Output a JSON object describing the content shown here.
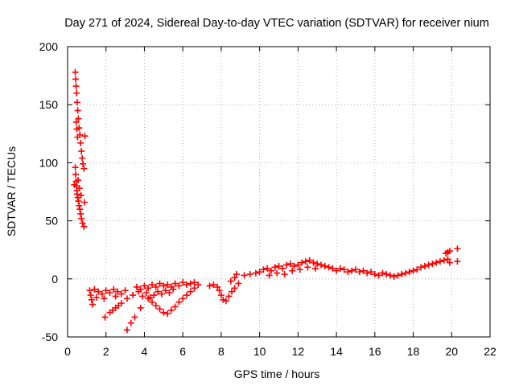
{
  "chart_data": {
    "type": "scatter",
    "title": "Day 271 of 2024, Sidereal Day-to-day VTEC variation (SDTVAR) for receiver nium",
    "xlabel": "GPS time / hours",
    "ylabel": "SDTVAR / TECUs",
    "xlim": [
      0,
      22
    ],
    "ylim": [
      -50,
      200
    ],
    "xticks": [
      "0",
      "2",
      "4",
      "6",
      "8",
      "10",
      "12",
      "14",
      "16",
      "18",
      "20",
      "22"
    ],
    "yticks": [
      "-50",
      "0",
      "50",
      "100",
      "150",
      "200"
    ],
    "grid": true,
    "legend": "none",
    "marker": "+",
    "colors": {
      "series": "#ff0000",
      "grid": "#a0a0a0",
      "axis": "#000000"
    },
    "series": [
      {
        "name": "SDTVAR",
        "points": [
          [
            0.4,
            178
          ],
          [
            0.42,
            172
          ],
          [
            0.44,
            166
          ],
          [
            0.47,
            160
          ],
          [
            0.5,
            152
          ],
          [
            0.53,
            145
          ],
          [
            0.56,
            138
          ],
          [
            0.6,
            130
          ],
          [
            0.64,
            124
          ],
          [
            0.68,
            117
          ],
          [
            0.72,
            110
          ],
          [
            0.76,
            104
          ],
          [
            0.8,
            99
          ],
          [
            0.85,
            95
          ],
          [
            0.9,
            123
          ],
          [
            0.45,
            135
          ],
          [
            0.48,
            129
          ],
          [
            0.52,
            122
          ],
          [
            0.4,
            96
          ],
          [
            0.42,
            90
          ],
          [
            0.44,
            84
          ],
          [
            0.46,
            80
          ],
          [
            0.48,
            76
          ],
          [
            0.5,
            73
          ],
          [
            0.53,
            70
          ],
          [
            0.56,
            67
          ],
          [
            0.6,
            63
          ],
          [
            0.64,
            60
          ],
          [
            0.68,
            56
          ],
          [
            0.72,
            52
          ],
          [
            0.78,
            48
          ],
          [
            0.85,
            45
          ],
          [
            0.88,
            66
          ],
          [
            0.55,
            85
          ],
          [
            0.62,
            78
          ],
          [
            0.7,
            72
          ],
          [
            0.35,
            81
          ],
          [
            1.15,
            -10
          ],
          [
            1.2,
            -14
          ],
          [
            1.25,
            -18
          ],
          [
            1.3,
            -22
          ],
          [
            1.4,
            -9
          ],
          [
            1.6,
            -11
          ],
          [
            1.8,
            -13
          ],
          [
            2.0,
            -10
          ],
          [
            2.2,
            -12
          ],
          [
            2.4,
            -9
          ],
          [
            2.6,
            -11
          ],
          [
            2.8,
            -13
          ],
          [
            3.0,
            -10
          ],
          [
            1.5,
            -16
          ],
          [
            1.9,
            -17
          ],
          [
            2.5,
            -15
          ],
          [
            1.95,
            -33
          ],
          [
            2.2,
            -29
          ],
          [
            2.5,
            -25
          ],
          [
            2.8,
            -21
          ],
          [
            3.1,
            -17
          ],
          [
            3.4,
            -14
          ],
          [
            3.7,
            -11
          ],
          [
            2.35,
            -27
          ],
          [
            2.65,
            -23
          ],
          [
            3.1,
            -44
          ],
          [
            3.3,
            -38
          ],
          [
            3.5,
            -33
          ],
          [
            3.8,
            -25
          ],
          [
            3.6,
            -7
          ],
          [
            3.8,
            -9
          ],
          [
            4.0,
            -6
          ],
          [
            4.2,
            -8
          ],
          [
            4.4,
            -5
          ],
          [
            4.6,
            -7
          ],
          [
            4.8,
            -4
          ],
          [
            5.0,
            -6
          ],
          [
            5.2,
            -5
          ],
          [
            5.4,
            -7
          ],
          [
            5.6,
            -4
          ],
          [
            5.8,
            -6
          ],
          [
            6.0,
            -3
          ],
          [
            6.2,
            -5
          ],
          [
            6.4,
            -4
          ],
          [
            6.6,
            -3
          ],
          [
            6.8,
            -5
          ],
          [
            3.9,
            -15
          ],
          [
            4.1,
            -12
          ],
          [
            4.3,
            -16
          ],
          [
            4.5,
            -14
          ],
          [
            4.7,
            -11
          ],
          [
            4.9,
            -13
          ],
          [
            5.1,
            -10
          ],
          [
            5.3,
            -12
          ],
          [
            5.5,
            -9
          ],
          [
            4.2,
            -17
          ],
          [
            4.4,
            -20
          ],
          [
            4.6,
            -23
          ],
          [
            4.8,
            -26
          ],
          [
            5.0,
            -29
          ],
          [
            5.2,
            -30
          ],
          [
            5.4,
            -27
          ],
          [
            5.6,
            -24
          ],
          [
            5.8,
            -20
          ],
          [
            6.0,
            -17
          ],
          [
            6.2,
            -14
          ],
          [
            6.4,
            -11
          ],
          [
            6.6,
            -8
          ],
          [
            7.4,
            -6
          ],
          [
            7.6,
            -5
          ],
          [
            7.8,
            -7
          ],
          [
            7.9,
            -10
          ],
          [
            8.0,
            -14
          ],
          [
            8.1,
            -18
          ],
          [
            8.25,
            -19
          ],
          [
            8.4,
            -15
          ],
          [
            8.55,
            -11
          ],
          [
            8.7,
            -8
          ],
          [
            8.9,
            -4
          ],
          [
            8.5,
            -2
          ],
          [
            8.7,
            1
          ],
          [
            8.8,
            4
          ],
          [
            9.2,
            3
          ],
          [
            9.5,
            4
          ],
          [
            9.8,
            5
          ],
          [
            10.0,
            6
          ],
          [
            10.2,
            8
          ],
          [
            10.4,
            9
          ],
          [
            10.6,
            7
          ],
          [
            10.8,
            10
          ],
          [
            11.0,
            11
          ],
          [
            11.2,
            9
          ],
          [
            11.4,
            12
          ],
          [
            11.6,
            13
          ],
          [
            11.8,
            11
          ],
          [
            12.0,
            12
          ],
          [
            12.2,
            14
          ],
          [
            12.4,
            15
          ],
          [
            12.6,
            16
          ],
          [
            12.8,
            14
          ],
          [
            13.0,
            13
          ],
          [
            13.2,
            12
          ],
          [
            13.4,
            11
          ],
          [
            13.6,
            10
          ],
          [
            13.8,
            9
          ],
          [
            10.5,
            3
          ],
          [
            10.9,
            5
          ],
          [
            11.3,
            4
          ],
          [
            11.7,
            7
          ],
          [
            12.1,
            8
          ],
          [
            12.5,
            10
          ],
          [
            12.9,
            9
          ],
          [
            14.0,
            7
          ],
          [
            14.2,
            9
          ],
          [
            14.4,
            8
          ],
          [
            14.6,
            6
          ],
          [
            14.8,
            7
          ],
          [
            15.0,
            8
          ],
          [
            15.2,
            6
          ],
          [
            15.4,
            7
          ],
          [
            15.6,
            5
          ],
          [
            15.8,
            6
          ],
          [
            16.0,
            4
          ],
          [
            16.2,
            3
          ],
          [
            16.4,
            5
          ],
          [
            16.6,
            4
          ],
          [
            16.8,
            3
          ],
          [
            17.0,
            2
          ],
          [
            17.2,
            3
          ],
          [
            17.4,
            4
          ],
          [
            17.6,
            5
          ],
          [
            17.8,
            6
          ],
          [
            18.0,
            7
          ],
          [
            18.2,
            8
          ],
          [
            18.4,
            10
          ],
          [
            18.6,
            11
          ],
          [
            18.8,
            12
          ],
          [
            19.0,
            13
          ],
          [
            19.2,
            14
          ],
          [
            19.4,
            15
          ],
          [
            19.6,
            16
          ],
          [
            19.8,
            17
          ],
          [
            19.9,
            14
          ],
          [
            19.7,
            22
          ],
          [
            19.8,
            23
          ],
          [
            19.9,
            24
          ],
          [
            20.3,
            26
          ],
          [
            20.3,
            15
          ]
        ]
      }
    ]
  }
}
